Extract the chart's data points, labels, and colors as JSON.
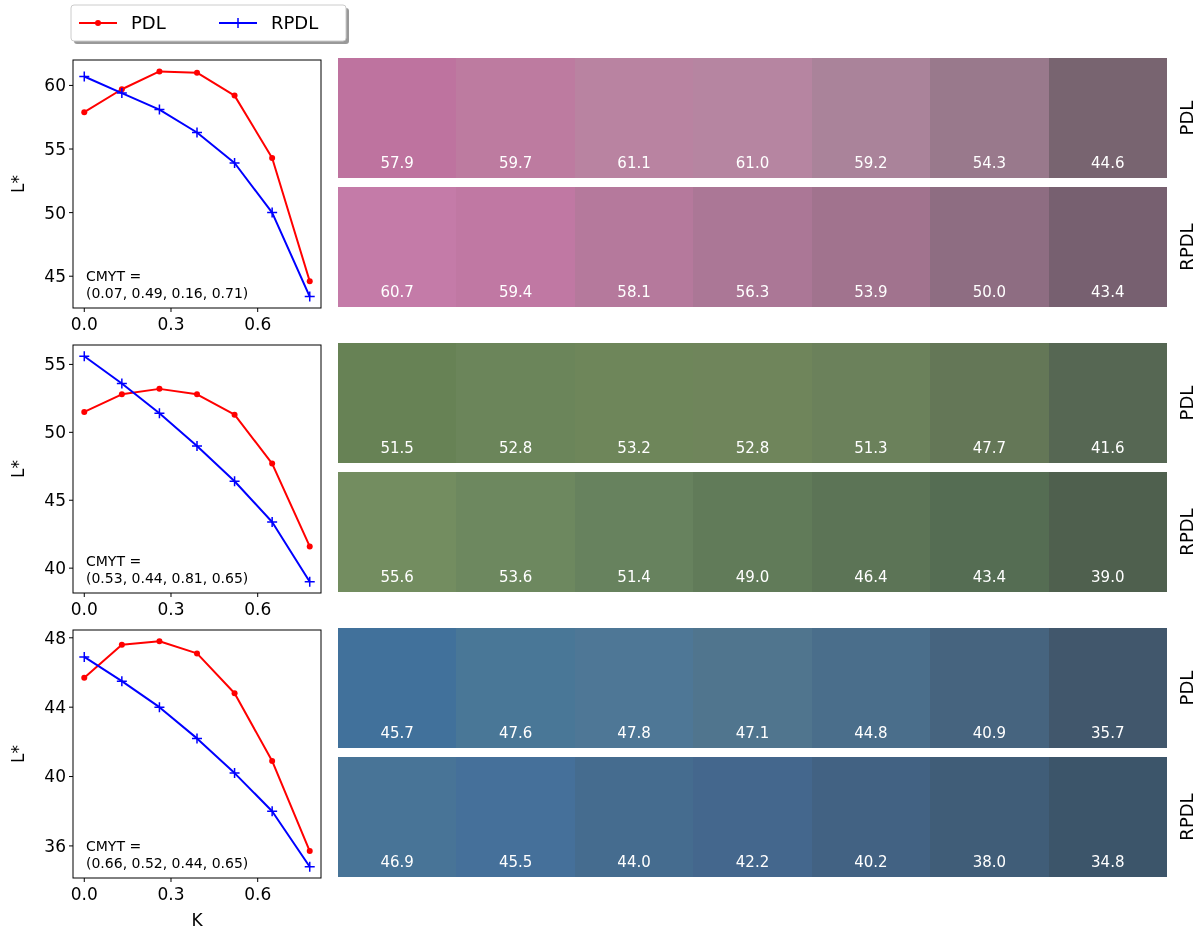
{
  "chart_data": [
    {
      "type": "line",
      "ylabel": "L*",
      "x": [
        0,
        0.13,
        0.26,
        0.39,
        0.52,
        0.65,
        0.78
      ],
      "xlim": [
        -0.039,
        0.819
      ],
      "xticks": [
        {
          "value": 0,
          "label": "0.0"
        },
        {
          "value": 0.3,
          "label": "0.3"
        },
        {
          "value": 0.6,
          "label": "0.6"
        }
      ],
      "ylim": [
        42.5,
        62.0
      ],
      "yticks": [
        45,
        50,
        55,
        60
      ],
      "legend": "top left",
      "annotations": [
        "CMYT =\n(0.07, 0.49, 0.16, 0.71)"
      ],
      "series": [
        {
          "name": "PDL",
          "color": "#ff0000",
          "marker": "circle",
          "values": [
            57.9,
            59.7,
            61.1,
            61.0,
            59.2,
            54.3,
            44.6
          ]
        },
        {
          "name": "RPDL",
          "color": "#0000ff",
          "marker": "cross",
          "values": [
            60.7,
            59.4,
            58.1,
            56.3,
            53.9,
            50.0,
            43.4
          ]
        }
      ]
    },
    {
      "type": "heatmap",
      "categories": [
        null,
        null,
        null,
        null,
        null,
        null,
        null
      ],
      "y_categories": [
        "PDL",
        "RPDL"
      ],
      "cells": [
        [
          57.9,
          59.7,
          61.1,
          61.0,
          59.2,
          54.3,
          44.6
        ],
        [
          60.7,
          59.4,
          58.1,
          56.3,
          53.9,
          50.0,
          43.4
        ]
      ],
      "cell_labels": [
        [
          "57.9",
          "59.7",
          "61.1",
          "61.0",
          "59.2",
          "54.3",
          "44.6"
        ],
        [
          "60.7",
          "59.4",
          "58.1",
          "56.3",
          "53.9",
          "50.0",
          "43.4"
        ]
      ],
      "colors": [
        [
          "#bd729e",
          "#bb799e",
          "#b882a0",
          "#b4839f",
          "#a98299",
          "#98788b",
          "#77636f"
        ],
        [
          "#c279a6",
          "#bd75a0",
          "#b4789b",
          "#a87493",
          "#9f718c",
          "#8c6b80",
          "#755e6e"
        ]
      ]
    },
    {
      "type": "line",
      "ylabel": "L*",
      "x": [
        0,
        0.13,
        0.26,
        0.39,
        0.52,
        0.65,
        0.78
      ],
      "xlim": [
        -0.039,
        0.819
      ],
      "xticks": [
        {
          "value": 0,
          "label": "0.0"
        },
        {
          "value": 0.3,
          "label": "0.3"
        },
        {
          "value": 0.6,
          "label": "0.6"
        }
      ],
      "ylim": [
        38.17,
        56.43
      ],
      "yticks": [
        40,
        45,
        50,
        55
      ],
      "annotations": [
        "CMYT =\n(0.53, 0.44, 0.81, 0.65)"
      ],
      "series": [
        {
          "color": "#ff0000",
          "marker": "circle",
          "values": [
            51.5,
            52.8,
            53.2,
            52.8,
            51.3,
            47.7,
            41.6
          ]
        },
        {
          "color": "#0000ff",
          "marker": "cross",
          "values": [
            55.6,
            53.6,
            51.4,
            49.0,
            46.4,
            43.4,
            39.0
          ]
        }
      ]
    },
    {
      "type": "heatmap",
      "categories": [
        null,
        null,
        null,
        null,
        null,
        null,
        null
      ],
      "y_categories": [
        "PDL",
        "RPDL"
      ],
      "cells": [
        [
          51.5,
          52.8,
          53.2,
          52.8,
          51.3,
          47.7,
          41.6
        ],
        [
          55.6,
          53.6,
          51.4,
          49.0,
          46.4,
          43.4,
          39.0
        ]
      ],
      "cell_labels": [
        [
          "51.5",
          "52.8",
          "53.2",
          "52.8",
          "51.3",
          "47.7",
          "41.6"
        ],
        [
          "55.6",
          "53.6",
          "51.4",
          "49.0",
          "46.4",
          "43.4",
          "39.0"
        ]
      ],
      "colors": [
        [
          "#668154",
          "#6c865b",
          "#70885c",
          "#71875d",
          "#6c825c",
          "#627555",
          "#52634f"
        ],
        [
          "#728c5f",
          "#6c875e",
          "#66805d",
          "#607a58",
          "#5b7355",
          "#526a50",
          "#4b5c4a"
        ]
      ]
    },
    {
      "type": "line",
      "ylabel": "L*",
      "xlabel": "K",
      "x": [
        0,
        0.13,
        0.26,
        0.39,
        0.52,
        0.65,
        0.78
      ],
      "xlim": [
        -0.039,
        0.819
      ],
      "xticks": [
        {
          "value": 0,
          "label": "0.0"
        },
        {
          "value": 0.3,
          "label": "0.3"
        },
        {
          "value": 0.6,
          "label": "0.6"
        }
      ],
      "ylim": [
        34.15,
        48.45
      ],
      "yticks": [
        36,
        40,
        44,
        48
      ],
      "annotations": [
        "CMYT =\n(0.66, 0.52, 0.44, 0.65)"
      ],
      "series": [
        {
          "color": "#ff0000",
          "marker": "circle",
          "values": [
            45.7,
            47.6,
            47.8,
            47.1,
            44.8,
            40.9,
            35.7
          ]
        },
        {
          "color": "#0000ff",
          "marker": "cross",
          "values": [
            46.9,
            45.5,
            44.0,
            42.2,
            40.2,
            38.0,
            34.8
          ]
        }
      ]
    },
    {
      "type": "heatmap",
      "categories": [
        null,
        null,
        null,
        null,
        null,
        null,
        null
      ],
      "y_categories": [
        "PDL",
        "RPDL"
      ],
      "cells": [
        [
          45.7,
          47.6,
          47.8,
          47.1,
          44.8,
          40.9,
          35.7
        ],
        [
          46.9,
          45.5,
          44.0,
          42.2,
          40.2,
          38.0,
          34.8
        ]
      ],
      "cell_labels": [
        [
          "45.7",
          "47.6",
          "47.8",
          "47.1",
          "44.8",
          "40.9",
          "35.7"
        ],
        [
          "46.9",
          "45.5",
          "44.0",
          "42.2",
          "40.2",
          "38.0",
          "34.8"
        ]
      ],
      "colors": [
        [
          "#40709a",
          "#4b799a",
          "#4e7796",
          "#51768f",
          "#4b6f8c",
          "#45637e",
          "#3e5469"
        ],
        [
          "#4a7699",
          "#45709a",
          "#446b8d",
          "#41648a",
          "#406081",
          "#3d5a75",
          "#3a5368"
        ]
      ]
    }
  ]
}
